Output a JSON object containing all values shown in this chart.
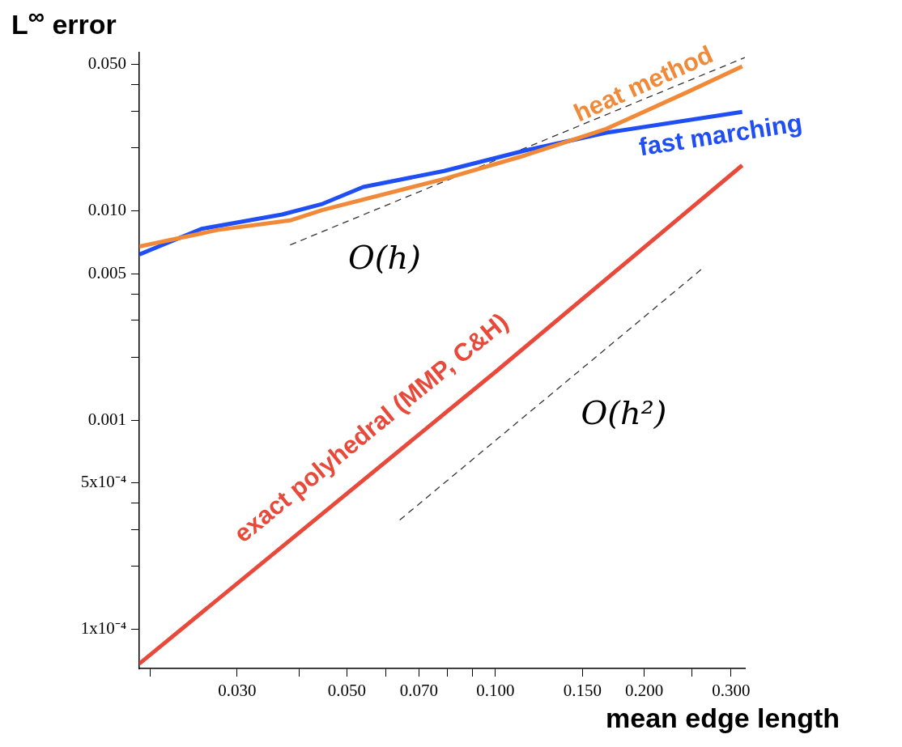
{
  "chart_data": {
    "type": "line",
    "xlabel": "mean edge length",
    "ylabel": "L$^{∞}$ error",
    "log": "xy",
    "grid": false,
    "legend": false,
    "marker": "none",
    "xlim": [
      0.019,
      0.32
    ],
    "ylim": [
      6.5e-05,
      0.057
    ],
    "xticks": [
      {
        "value": 0.02,
        "label": null
      },
      {
        "value": 0.03,
        "label": "0.030"
      },
      {
        "value": 0.04,
        "label": null
      },
      {
        "value": 0.05,
        "label": "0.050"
      },
      {
        "value": 0.06,
        "label": null
      },
      {
        "value": 0.07,
        "label": "0.070"
      },
      {
        "value": 0.08,
        "label": null
      },
      {
        "value": 0.09,
        "label": null
      },
      {
        "value": 0.1,
        "label": "0.100"
      },
      {
        "value": 0.15,
        "label": "0.150"
      },
      {
        "value": 0.2,
        "label": "0.200"
      },
      {
        "value": 0.25,
        "label": null
      },
      {
        "value": 0.3,
        "label": "0.300"
      }
    ],
    "yticks": [
      {
        "value": 0.0001,
        "label": "1x10⁻⁴"
      },
      {
        "value": 0.0002,
        "label": null
      },
      {
        "value": 0.0003,
        "label": null
      },
      {
        "value": 0.0004,
        "label": null
      },
      {
        "value": 0.0005,
        "label": "5x10⁻⁴"
      },
      {
        "value": 0.001,
        "label": "0.001"
      },
      {
        "value": 0.002,
        "label": null
      },
      {
        "value": 0.003,
        "label": null
      },
      {
        "value": 0.004,
        "label": null
      },
      {
        "value": 0.005,
        "label": "0.005"
      },
      {
        "value": 0.01,
        "label": "0.010"
      },
      {
        "value": 0.02,
        "label": null
      },
      {
        "value": 0.03,
        "label": null
      },
      {
        "value": 0.04,
        "label": null
      },
      {
        "value": 0.05,
        "label": "0.050"
      }
    ],
    "series": [
      {
        "name": "heat method",
        "color": "#f08a38",
        "x": [
          0.019,
          0.0274,
          0.0384,
          0.0447,
          0.0787,
          0.1148,
          0.1675,
          0.244,
          0.316
        ],
        "values": [
          0.00675,
          0.0081,
          0.009,
          0.0101,
          0.0142,
          0.0184,
          0.0246,
          0.0368,
          0.049
        ]
      },
      {
        "name": "fast marching",
        "color": "#1f4ef5",
        "x": [
          0.019,
          0.0254,
          0.037,
          0.0447,
          0.054,
          0.0787,
          0.1148,
          0.1675,
          0.316
        ],
        "values": [
          0.00618,
          0.0082,
          0.0096,
          0.0108,
          0.013,
          0.0155,
          0.0194,
          0.0236,
          0.0297
        ]
      },
      {
        "name": "exact polyhedral (MMP, C&H)",
        "color": "#e8493a",
        "x": [
          0.019,
          0.1,
          0.316
        ],
        "values": [
          6.85e-05,
          0.0017,
          0.0165
        ]
      },
      {
        "color": "#333333",
        "line_style": "dashed",
        "x": [
          0.0384,
          0.32
        ],
        "values": [
          0.00687,
          0.054
        ]
      },
      {
        "color": "#333333",
        "line_style": "dashed",
        "x": [
          0.064,
          0.265
        ],
        "values": [
          0.000333,
          0.0054
        ]
      }
    ],
    "annotations": [
      "O(h)",
      "O(h²)"
    ]
  }
}
